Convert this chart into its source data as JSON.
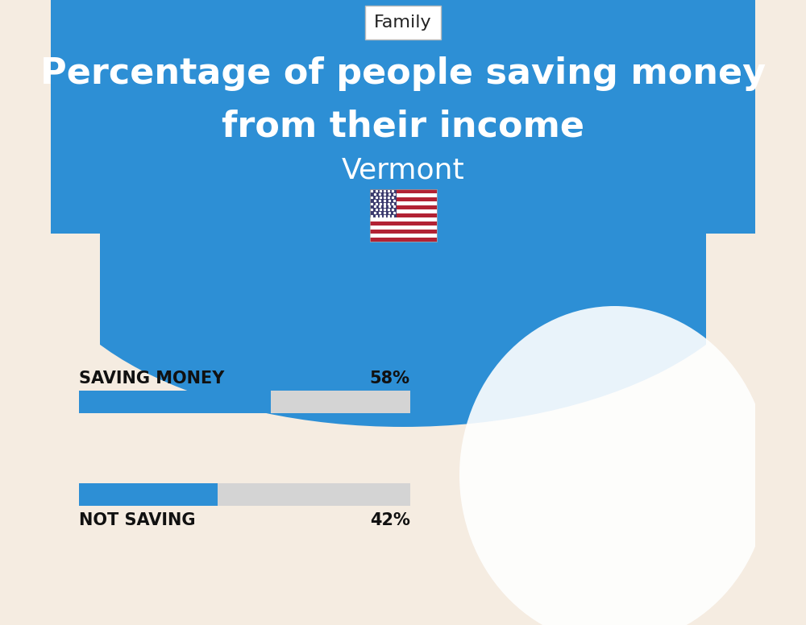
{
  "title_line1": "Percentage of people saving money",
  "title_line2": "from their income",
  "subtitle": "Vermont",
  "category_label": "Family",
  "saving_label": "SAVING MONEY",
  "saving_value": 58,
  "saving_pct_label": "58%",
  "not_saving_label": "NOT SAVING",
  "not_saving_value": 42,
  "not_saving_pct_label": "42%",
  "blue_color": "#2d8fd5",
  "bar_bg_color": "#d4d4d4",
  "background_bottom": "#f5ece1",
  "title_color": "#ffffff",
  "subtitle_color": "#ffffff",
  "label_color": "#111111",
  "flag_colors_red": "#b22234",
  "flag_colors_blue": "#3c3b6e",
  "flag_colors_white": "#ffffff"
}
